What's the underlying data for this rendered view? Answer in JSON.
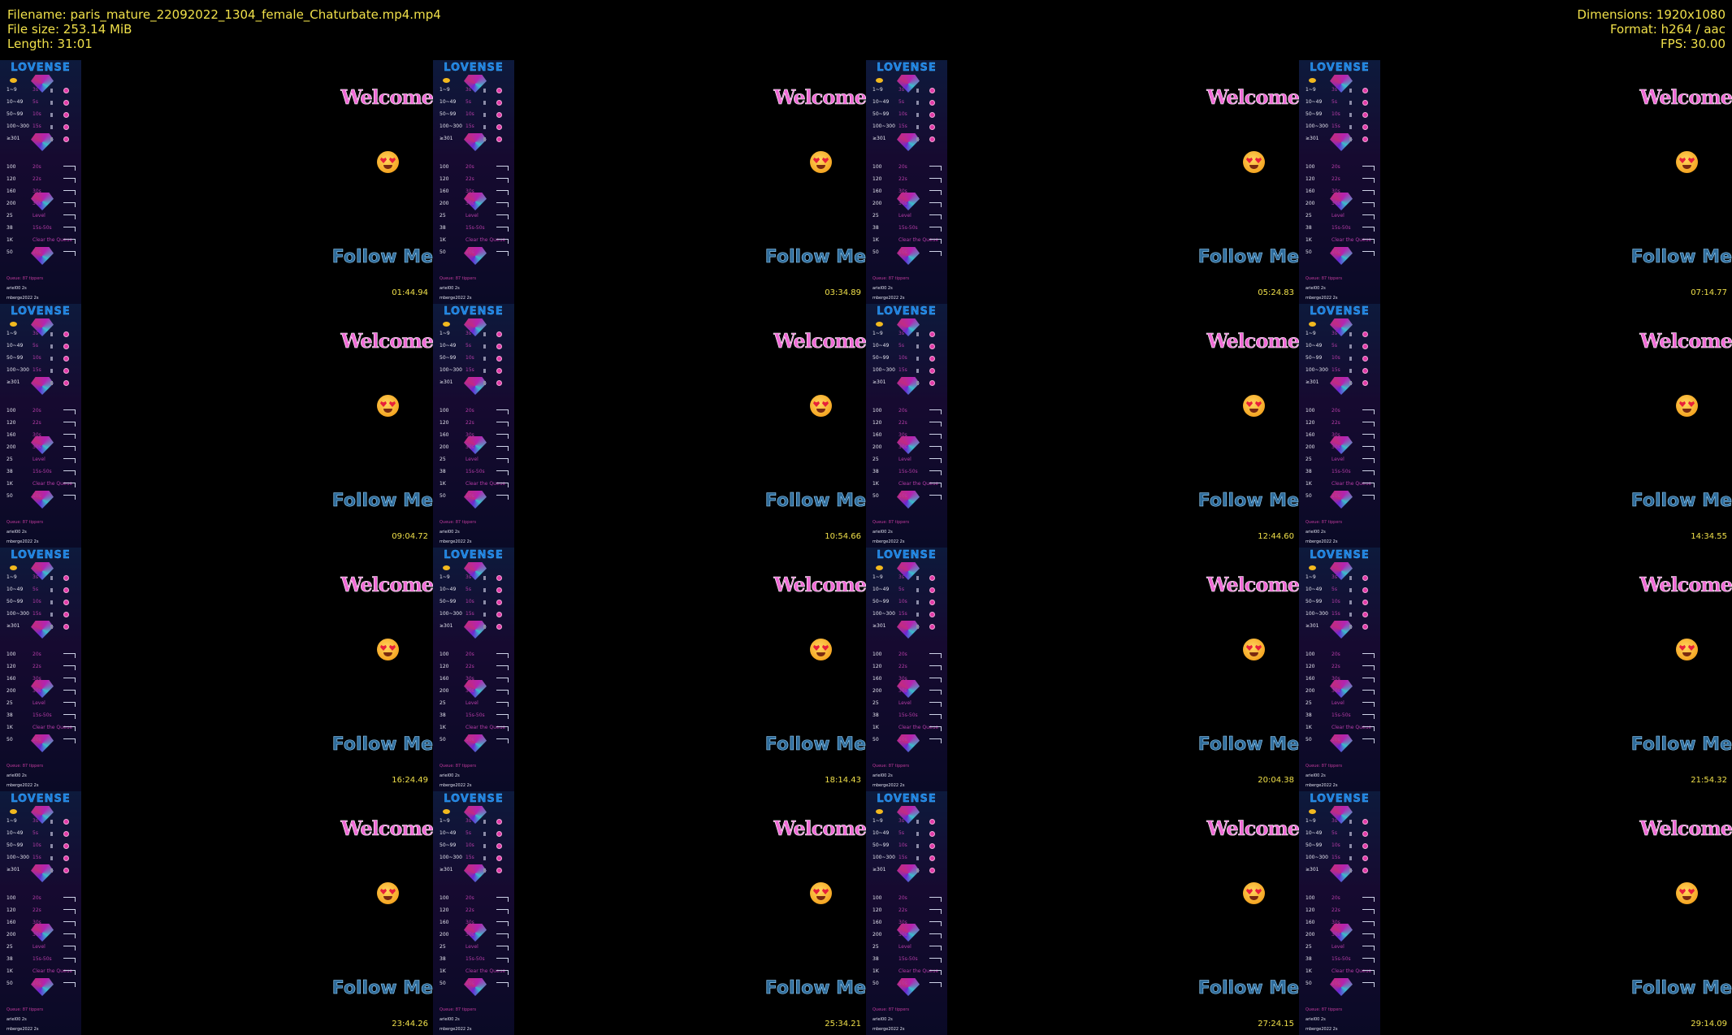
{
  "header": {
    "filename": "Filename: paris_mature_22092022_1304_female_Chaturbate.mp4.mp4",
    "file_size": "File size: 253.14 MiB",
    "length": "Length: 31:01",
    "dimensions": "Dimensions: 1920x1080",
    "format": "Format: h264 / aac",
    "fps": "FPS: 30.00"
  },
  "overlay": {
    "logo": "LOVENSE",
    "welcome": "Welcome",
    "follow": "Follow Me",
    "tiers": [
      {
        "level": "1~9",
        "duration": "3s"
      },
      {
        "level": "10~49",
        "duration": "5s"
      },
      {
        "level": "50~99",
        "duration": "10s"
      },
      {
        "level": "100~300",
        "duration": "15s"
      },
      {
        "level": "≥301",
        "duration": ""
      }
    ],
    "specials": [
      {
        "level": "100",
        "duration": "20s"
      },
      {
        "level": "120",
        "duration": "22s"
      },
      {
        "level": "160",
        "duration": "30s"
      },
      {
        "level": "200",
        "duration": "30s"
      },
      {
        "level": "25",
        "duration": "Level"
      },
      {
        "level": "38",
        "duration": "15s-50s"
      },
      {
        "level": "1K",
        "duration": "Clear the Queue"
      },
      {
        "level": "50",
        "duration": "10s"
      }
    ],
    "queue_label": "Queue: 87 tippers",
    "queue_rows": [
      "ariel00 2s",
      "mberge2022 2s"
    ]
  },
  "timestamps": [
    "01:44.94",
    "03:34.89",
    "05:24.83",
    "07:14.77",
    "09:04.72",
    "10:54.66",
    "12:44.60",
    "14:34.55",
    "16:24.49",
    "18:14.43",
    "20:04.38",
    "21:54.32",
    "23:44.26",
    "25:34.21",
    "27:24.15",
    "29:14.09"
  ],
  "colors": {
    "meta_text": "#f0e04a",
    "logo": "#1b7fe0",
    "welcome": "#f06ad6",
    "follow": "#2e6b9a"
  }
}
